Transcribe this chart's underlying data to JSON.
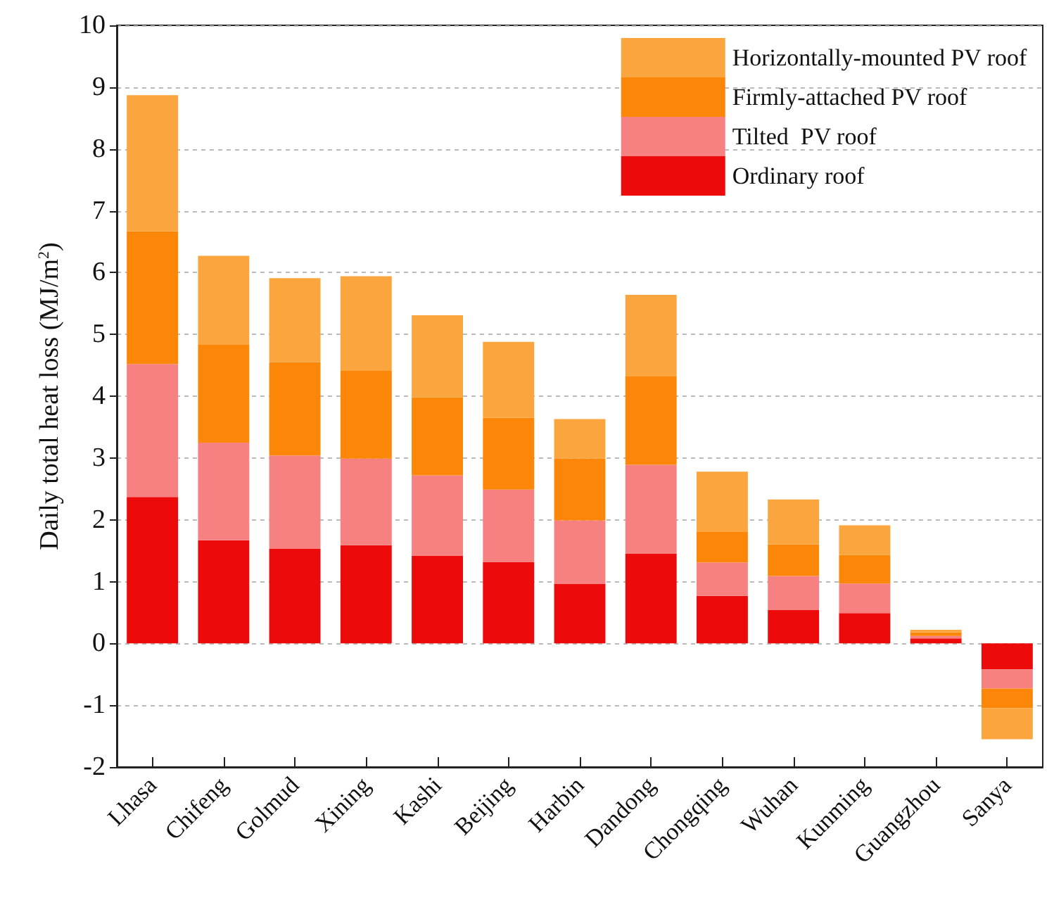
{
  "chart_data": {
    "type": "bar",
    "stacked": true,
    "ylabel": "Daily total heat loss (MJ/m$^{2}$)",
    "categories": [
      "Lhasa",
      "Chifeng",
      "Golmud",
      "Xining",
      "Kashi",
      "Beijing",
      "Harbin",
      "Dandong",
      "Chongqing",
      "Wuhan",
      "Kunming",
      "Guangzhou",
      "Sanya"
    ],
    "series": [
      {
        "name": "Ordinary roof",
        "color": "#ec0a0a",
        "values": [
          2.37,
          1.67,
          1.53,
          1.59,
          1.42,
          1.32,
          0.96,
          1.45,
          0.77,
          0.54,
          0.49,
          0.08,
          -0.42
        ]
      },
      {
        "name": "Tilted  PV roof",
        "color": "#f78080",
        "values": [
          2.15,
          1.58,
          1.51,
          1.4,
          1.3,
          1.17,
          1.03,
          1.44,
          0.54,
          0.55,
          0.48,
          0.04,
          -0.31
        ]
      },
      {
        "name": "Firmly-attached PV roof",
        "color": "#fb8607",
        "values": [
          2.15,
          1.58,
          1.51,
          1.42,
          1.26,
          1.16,
          1.0,
          1.43,
          0.5,
          0.51,
          0.46,
          0.06,
          -0.32
        ]
      },
      {
        "name": "Horizontally-mounted PV roof",
        "color": "#fba53e",
        "values": [
          2.2,
          1.44,
          1.36,
          1.53,
          1.33,
          1.23,
          0.64,
          1.32,
          0.97,
          0.73,
          0.48,
          0.04,
          -0.5
        ]
      }
    ],
    "ylim": [
      -2,
      10
    ],
    "yticks": [
      -2,
      -1,
      0,
      1,
      2,
      3,
      4,
      5,
      6,
      7,
      8,
      9,
      10
    ],
    "grid": "y",
    "legend": "top right"
  }
}
